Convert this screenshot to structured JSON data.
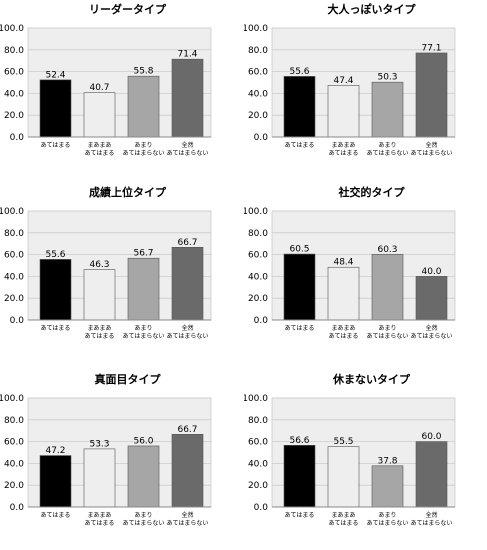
{
  "chart_data": [
    {
      "type": "bar",
      "title": "リーダータイプ",
      "categories": [
        [
          "あてはまる"
        ],
        [
          "まあまあ",
          "あてはまる"
        ],
        [
          "あまり",
          "あてはまらない"
        ],
        [
          "全然",
          "あてはまらない"
        ]
      ],
      "values": [
        52.4,
        40.7,
        55.8,
        71.4
      ],
      "ylim": [
        0,
        100
      ],
      "yticks": [
        "0.0",
        "20.0",
        "40.0",
        "60.0",
        "80.0",
        "100.0"
      ],
      "grid": true
    },
    {
      "type": "bar",
      "title": "大人っぽいタイプ",
      "categories": [
        [
          "あてはまる"
        ],
        [
          "まあまあ",
          "あてはまる"
        ],
        [
          "あまり",
          "あてはまらない"
        ],
        [
          "全然",
          "あてはまらない"
        ]
      ],
      "values": [
        55.6,
        47.4,
        50.3,
        77.1
      ],
      "ylim": [
        0,
        100
      ],
      "yticks": [
        "0.0",
        "20.0",
        "40.0",
        "60.0",
        "80.0",
        "100.0"
      ],
      "grid": true
    },
    {
      "type": "bar",
      "title": "成績上位タイプ",
      "categories": [
        [
          "あてはまる"
        ],
        [
          "まあまあ",
          "あてはまる"
        ],
        [
          "あまり",
          "あてはまらない"
        ],
        [
          "全然",
          "あてはまらない"
        ]
      ],
      "values": [
        55.6,
        46.3,
        56.7,
        66.7
      ],
      "ylim": [
        0,
        100
      ],
      "yticks": [
        "0.0",
        "20.0",
        "40.0",
        "60.0",
        "80.0",
        "100.0"
      ],
      "grid": true
    },
    {
      "type": "bar",
      "title": "社交的タイプ",
      "categories": [
        [
          "あてはまる"
        ],
        [
          "まあまあ",
          "あてはまる"
        ],
        [
          "あまり",
          "あてはまらない"
        ],
        [
          "全然",
          "あてはまらない"
        ]
      ],
      "values": [
        60.5,
        48.4,
        60.3,
        40.0
      ],
      "ylim": [
        0,
        100
      ],
      "yticks": [
        "0.0",
        "20.0",
        "40.0",
        "60.0",
        "80.0",
        "100.0"
      ],
      "grid": true
    },
    {
      "type": "bar",
      "title": "真面目タイプ",
      "categories": [
        [
          "あてはまる"
        ],
        [
          "まあまあ",
          "あてはまる"
        ],
        [
          "あまり",
          "あてはまらない"
        ],
        [
          "全然",
          "あてはまらない"
        ]
      ],
      "values": [
        47.2,
        53.3,
        56.0,
        66.7
      ],
      "ylim": [
        0,
        100
      ],
      "yticks": [
        "0.0",
        "20.0",
        "40.0",
        "60.0",
        "80.0",
        "100.0"
      ],
      "grid": true
    },
    {
      "type": "bar",
      "title": "休まないタイプ",
      "categories": [
        [
          "あてはまる"
        ],
        [
          "まあまあ",
          "あてはまる"
        ],
        [
          "あまり",
          "あてはまらない"
        ],
        [
          "全然",
          "あてはまらない"
        ]
      ],
      "values": [
        56.6,
        55.5,
        37.8,
        60.0
      ],
      "ylim": [
        0,
        100
      ],
      "yticks": [
        "0.0",
        "20.0",
        "40.0",
        "60.0",
        "80.0",
        "100.0"
      ],
      "grid": true
    }
  ],
  "colors": {
    "bars": [
      "#000000",
      "#eeeeee",
      "#a6a6a6",
      "#6a6a6a"
    ],
    "plot_background": "#eeeeee",
    "gridline": "#cccccc",
    "axis": "#888888",
    "bar_outline": "#555555"
  }
}
